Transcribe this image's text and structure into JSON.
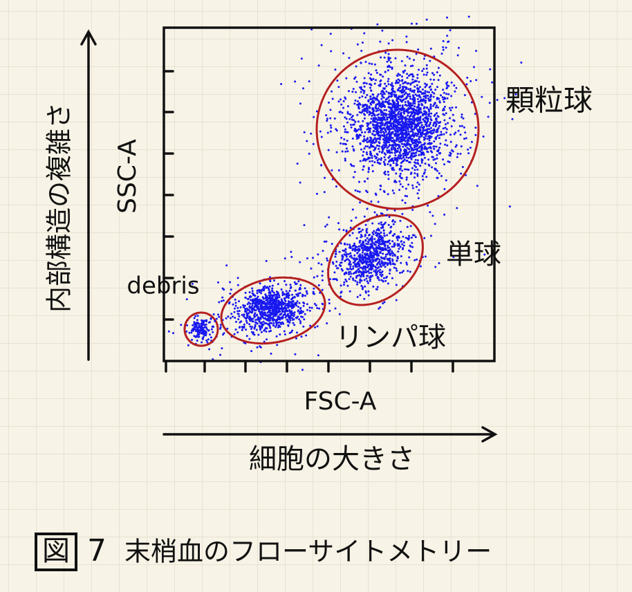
{
  "plot": {
    "y_axis_label": "SSC-A",
    "y_axis_description": "内部構造の複雑さ",
    "x_axis_label": "FSC-A",
    "x_axis_description": "細胞の大きさ",
    "populations": [
      "debris",
      "リンパ球",
      "単球",
      "顆粒球"
    ]
  },
  "caption": {
    "figure": "図",
    "number": "7",
    "title": "末梢血のフローサイトメトリー"
  }
}
